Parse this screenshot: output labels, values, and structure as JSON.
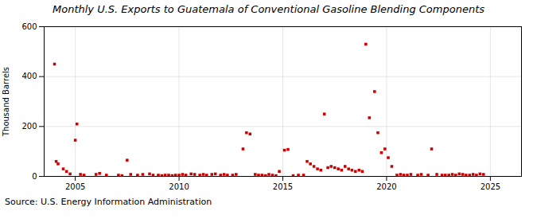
{
  "chart_data": {
    "type": "scatter",
    "title": "Monthly U.S. Exports to Guatemala of Conventional Gasoline Blending Components",
    "ylabel": "Thousand Barrels",
    "source": "Source: U.S. Energy Information Administration",
    "color": "#cc0000",
    "marker": "square",
    "grid": true,
    "xlim": [
      2003.5,
      2026.5
    ],
    "xticks": [
      2005,
      2010,
      2015,
      2020,
      2025
    ],
    "ylim": [
      0,
      600
    ],
    "yticks": [
      0,
      200,
      400,
      600
    ],
    "x": [
      2004.0,
      2004.08,
      2004.17,
      2004.42,
      2004.58,
      2004.75,
      2005.0,
      2005.08,
      2005.25,
      2005.42,
      2006.0,
      2006.17,
      2006.5,
      2007.08,
      2007.25,
      2007.5,
      2007.67,
      2008.0,
      2008.25,
      2008.58,
      2008.75,
      2009.0,
      2009.17,
      2009.33,
      2009.5,
      2009.67,
      2009.83,
      2010.0,
      2010.17,
      2010.33,
      2010.58,
      2010.75,
      2011.0,
      2011.17,
      2011.33,
      2011.58,
      2011.75,
      2012.0,
      2012.17,
      2012.33,
      2012.58,
      2012.75,
      2013.08,
      2013.25,
      2013.42,
      2013.67,
      2013.83,
      2014.0,
      2014.17,
      2014.33,
      2014.5,
      2014.67,
      2014.83,
      2015.08,
      2015.25,
      2015.5,
      2015.75,
      2016.0,
      2016.17,
      2016.33,
      2016.5,
      2016.67,
      2016.83,
      2017.0,
      2017.17,
      2017.33,
      2017.5,
      2017.67,
      2017.83,
      2018.0,
      2018.17,
      2018.33,
      2018.5,
      2018.67,
      2018.83,
      2019.0,
      2019.17,
      2019.42,
      2019.58,
      2019.75,
      2019.92,
      2020.08,
      2020.25,
      2020.5,
      2020.67,
      2020.83,
      2021.0,
      2021.17,
      2021.5,
      2021.67,
      2022.0,
      2022.17,
      2022.42,
      2022.67,
      2022.83,
      2023.0,
      2023.17,
      2023.33,
      2023.5,
      2023.67,
      2023.83,
      2024.0,
      2024.17,
      2024.33,
      2024.5,
      2024.67
    ],
    "values": [
      450,
      60,
      50,
      30,
      20,
      10,
      145,
      210,
      8,
      5,
      8,
      12,
      5,
      5,
      3,
      65,
      8,
      5,
      8,
      10,
      5,
      5,
      3,
      5,
      5,
      3,
      5,
      5,
      8,
      5,
      10,
      8,
      5,
      8,
      5,
      8,
      10,
      5,
      8,
      5,
      5,
      8,
      110,
      175,
      170,
      8,
      5,
      5,
      3,
      8,
      5,
      3,
      20,
      105,
      108,
      3,
      5,
      5,
      60,
      50,
      40,
      30,
      25,
      250,
      35,
      40,
      35,
      30,
      25,
      40,
      30,
      25,
      20,
      25,
      20,
      530,
      235,
      340,
      175,
      95,
      110,
      75,
      40,
      5,
      8,
      5,
      5,
      8,
      5,
      8,
      5,
      110,
      8,
      5,
      5,
      5,
      8,
      5,
      10,
      8,
      5,
      5,
      8,
      5,
      10,
      8
    ]
  }
}
